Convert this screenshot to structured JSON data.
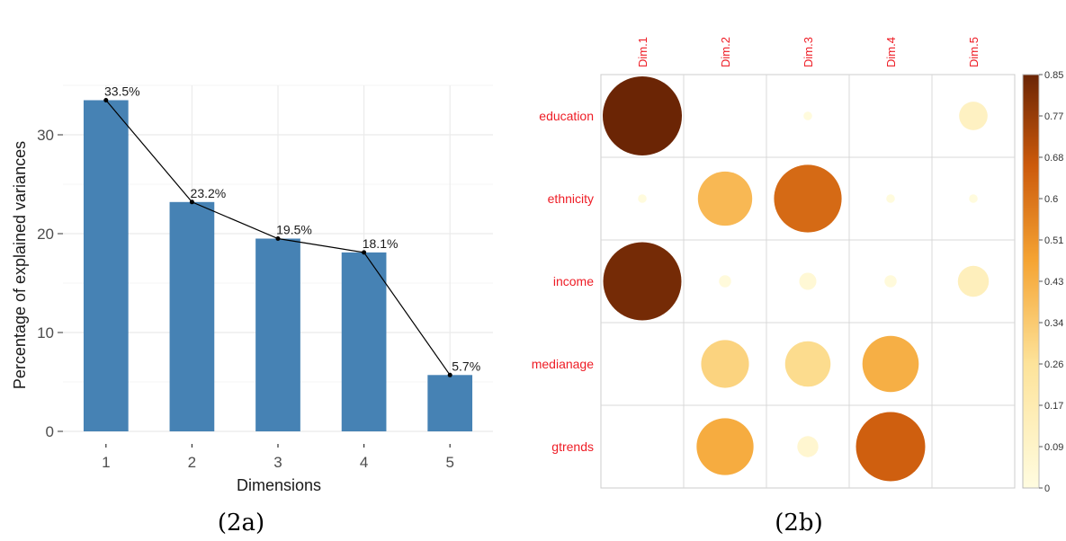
{
  "chart_data": [
    {
      "type": "bar",
      "categories": [
        "1",
        "2",
        "3",
        "4",
        "5"
      ],
      "values": [
        33.5,
        23.2,
        19.5,
        18.1,
        5.7
      ],
      "data_labels": [
        "33.5%",
        "23.2%",
        "19.5%",
        "18.1%",
        "5.7%"
      ],
      "line_overlay": true,
      "xlabel": "Dimensions",
      "ylabel": "Percentage of explained variances",
      "yticks": [
        0,
        10,
        20,
        30
      ],
      "ylim": [
        0,
        35
      ],
      "grid": true,
      "colors": {
        "bar": "#4682b4",
        "line": "#000000"
      },
      "caption": "(2a)"
    },
    {
      "type": "heatmap",
      "subtype": "correlation-circles",
      "columns": [
        "Dim.1",
        "Dim.2",
        "Dim.3",
        "Dim.4",
        "Dim.5"
      ],
      "rows": [
        "education",
        "ethnicity",
        "income",
        "medianage",
        "gtrends"
      ],
      "values": [
        [
          0.85,
          0.0,
          0.01,
          0.0,
          0.11
        ],
        [
          0.01,
          0.4,
          0.62,
          0.01,
          0.01
        ],
        [
          0.83,
          0.02,
          0.04,
          0.02,
          0.13
        ],
        [
          0.0,
          0.31,
          0.28,
          0.43,
          0.0
        ],
        [
          0.0,
          0.44,
          0.06,
          0.65,
          0.0
        ]
      ],
      "colorbar_ticks": [
        "0",
        "0.09",
        "0.17",
        "0.26",
        "0.34",
        "0.43",
        "0.51",
        "0.6",
        "0.68",
        "0.77",
        "0.85"
      ],
      "range": [
        0,
        0.85
      ],
      "colors": {
        "low": "#fffce0",
        "mid": "#f5a433",
        "high": "#6b2505",
        "labels": "#ee1c25"
      },
      "legend_position": "right",
      "caption": "(2b)"
    }
  ]
}
